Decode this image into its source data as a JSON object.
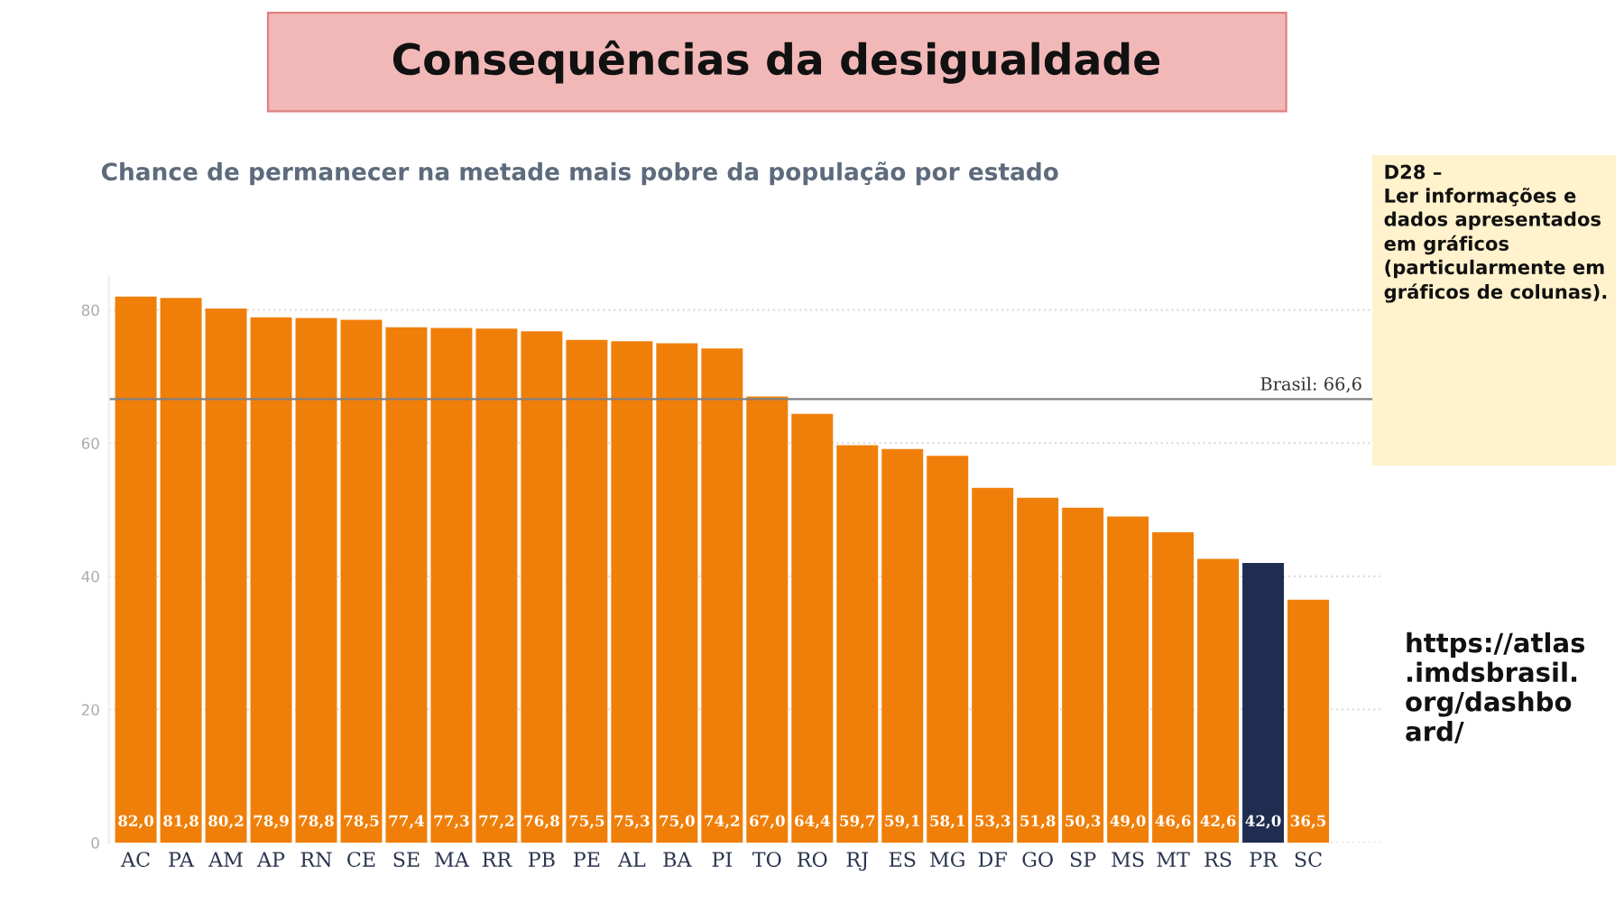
{
  "chart_data": {
    "type": "bar",
    "title": "Consequências da desigualdade",
    "subtitle": "Chance de permanecer na metade mais pobre da população por estado",
    "categories": [
      "AC",
      "PA",
      "AM",
      "AP",
      "RN",
      "CE",
      "SE",
      "MA",
      "RR",
      "PB",
      "PE",
      "AL",
      "BA",
      "PI",
      "TO",
      "RO",
      "RJ",
      "ES",
      "MG",
      "DF",
      "GO",
      "SP",
      "MS",
      "MT",
      "RS",
      "PR",
      "SC"
    ],
    "values": [
      82.0,
      81.8,
      80.2,
      78.9,
      78.8,
      78.5,
      77.4,
      77.3,
      77.2,
      76.8,
      75.5,
      75.3,
      75.0,
      74.2,
      67.0,
      64.4,
      59.7,
      59.1,
      58.1,
      53.3,
      51.8,
      50.3,
      49.0,
      46.6,
      42.6,
      42.0,
      36.5
    ],
    "value_labels": [
      "82,0",
      "81,8",
      "80,2",
      "78,9",
      "78,8",
      "78,5",
      "77,4",
      "77,3",
      "77,2",
      "76,8",
      "75,5",
      "75,3",
      "75,0",
      "74,2",
      "67,0",
      "64,4",
      "59,7",
      "59,1",
      "58,1",
      "53,3",
      "51,8",
      "50,3",
      "49,0",
      "46,6",
      "42,6",
      "42,0",
      "36,5"
    ],
    "colors": [
      "#f07f09",
      "#f07f09",
      "#f07f09",
      "#f07f09",
      "#f07f09",
      "#f07f09",
      "#f07f09",
      "#f07f09",
      "#f07f09",
      "#f07f09",
      "#f07f09",
      "#f07f09",
      "#f07f09",
      "#f07f09",
      "#f07f09",
      "#f07f09",
      "#f07f09",
      "#f07f09",
      "#f07f09",
      "#f07f09",
      "#f07f09",
      "#f07f09",
      "#f07f09",
      "#f07f09",
      "#f07f09",
      "#1f2d50",
      "#f07f09"
    ],
    "ylim": [
      0,
      85
    ],
    "yticks": [
      0,
      20,
      40,
      60,
      80
    ],
    "grid": "y",
    "ref_lines": [
      {
        "axis": "y",
        "value": 66.6,
        "label": "Brasil: 66,6",
        "color": "#808080"
      }
    ],
    "annotations": [
      "D28 –\nLer informações e dados apresentados em gráficos (particularmente em gráficos de colunas).",
      "https://atlas\n.imdsbrasil.\norg/dashbo\nard/"
    ]
  }
}
